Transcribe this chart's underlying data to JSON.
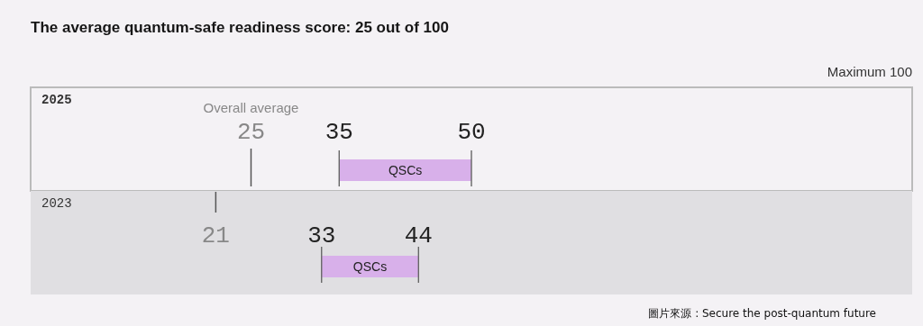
{
  "chart_data": [
    {
      "type": "bar",
      "orientation": "horizontal",
      "title": "The average quantum-safe readiness score: 25 out of 100",
      "categories": [
        "2025"
      ],
      "series": [
        {
          "name": "QSCs",
          "color": "#d8b0ea",
          "base": [
            35
          ],
          "values": [
            15
          ]
        }
      ],
      "xlim": [
        0,
        100
      ],
      "xticks": [
        25,
        35,
        50
      ],
      "ref_lines": [
        {
          "axis": "x",
          "value": 25
        }
      ],
      "annotations": [
        "Overall average",
        "Maximum 100"
      ]
    },
    {
      "type": "bar",
      "orientation": "horizontal",
      "categories": [
        "2023"
      ],
      "series": [
        {
          "name": "QSCs",
          "color": "#d8b0ea",
          "base": [
            33
          ],
          "values": [
            11
          ]
        }
      ],
      "xlim": [
        0,
        100
      ],
      "xticks": [
        21,
        33,
        44
      ],
      "ref_lines": [
        {
          "axis": "x",
          "value": 21
        }
      ],
      "annotations": [
        "圖片來源 : Secure the  post-quantum future"
      ]
    }
  ]
}
